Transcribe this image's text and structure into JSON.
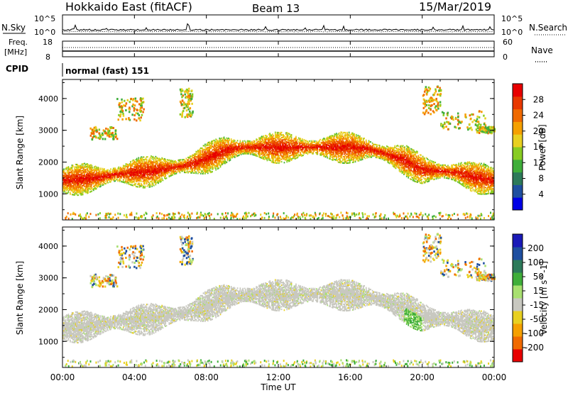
{
  "header": {
    "station": "Hokkaido East (fitACF)",
    "beam": "Beam 13",
    "date": "15/Mar/2019"
  },
  "top_panels": {
    "nsky_label": "N.Sky",
    "nsearch_label": "N.Search",
    "noise_ticks": [
      "10^5",
      "10^0"
    ],
    "freq_label_1": "Freq.",
    "freq_label_2": "[MHz]",
    "freq_ticks": [
      "18",
      "8"
    ],
    "nave_label": "Nave",
    "nave_ticks": [
      "60",
      "0"
    ],
    "cpid_label": "CPID",
    "cpid_value": "normal (fast) 151"
  },
  "colors": {
    "power_scale": [
      "#0000e6",
      "#1f4fa0",
      "#2d7a5a",
      "#3fae3a",
      "#88cc22",
      "#e8d020",
      "#f5a000",
      "#f06a00",
      "#e83800",
      "#e80000"
    ],
    "velocity_scale": [
      "#1a1ab8",
      "#1f4fa0",
      "#2d7a5a",
      "#3fae3a",
      "#a8e070",
      "#c8c8c0",
      "#e8d020",
      "#f5a000",
      "#f06a00",
      "#e80000"
    ]
  },
  "chart_data": [
    {
      "type": "heatmap",
      "name": "Power",
      "xlabel": "Time UT",
      "ylabel": "Slant Range [km]",
      "x_ticks": [
        "00:00",
        "04:00",
        "08:00",
        "12:00",
        "16:00",
        "20:00",
        "00:00"
      ],
      "y_ticks": [
        1000,
        2000,
        3000,
        4000
      ],
      "xlim_hours": [
        0,
        24
      ],
      "ylim_km": [
        180,
        4600
      ],
      "colorbar": {
        "label": "Power [dB]",
        "ticks": [
          4,
          8,
          12,
          16,
          20,
          24,
          28
        ]
      },
      "main_echo_band_center_km": [
        [
          0,
          1400
        ],
        [
          1,
          1450
        ],
        [
          2,
          1500
        ],
        [
          3,
          1600
        ],
        [
          4,
          1650
        ],
        [
          5,
          1700
        ],
        [
          6,
          1800
        ],
        [
          7,
          1900
        ],
        [
          8,
          2100
        ],
        [
          9,
          2350
        ],
        [
          10,
          2450
        ],
        [
          11,
          2450
        ],
        [
          12,
          2450
        ],
        [
          13,
          2450
        ],
        [
          14,
          2450
        ],
        [
          15,
          2450
        ],
        [
          16,
          2450
        ],
        [
          17,
          2400
        ],
        [
          18,
          2250
        ],
        [
          19,
          2050
        ],
        [
          20,
          1750
        ],
        [
          21,
          1700
        ],
        [
          22,
          1650
        ],
        [
          23,
          1500
        ],
        [
          24,
          1400
        ]
      ]
    },
    {
      "type": "heatmap",
      "name": "Velocity",
      "xlabel": "Time UT",
      "ylabel": "Slant Range [km]",
      "x_ticks": [
        "00:00",
        "04:00",
        "08:00",
        "12:00",
        "16:00",
        "20:00",
        "00:00"
      ],
      "y_ticks": [
        1000,
        2000,
        3000,
        4000
      ],
      "xlim_hours": [
        0,
        24
      ],
      "ylim_km": [
        180,
        4600
      ],
      "colorbar": {
        "label": "Velocity [m s^-1]",
        "ticks": [
          200,
          100,
          50,
          15,
          -15,
          -50,
          -100,
          -200
        ]
      }
    }
  ]
}
